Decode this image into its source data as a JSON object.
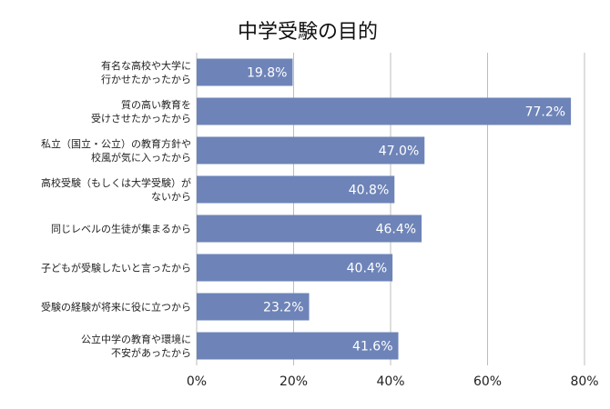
{
  "chart_data": {
    "type": "bar",
    "orientation": "horizontal",
    "title": "中学受験の目的",
    "xlabel": "",
    "ylabel": "",
    "xlim": [
      0,
      80
    ],
    "ticks": [
      0,
      20,
      40,
      60,
      80
    ],
    "tick_labels": [
      "0%",
      "20%",
      "40%",
      "60%",
      "80%"
    ],
    "grid": true,
    "legend": "none",
    "bar_color": "#6e84b8",
    "categories": [
      [
        "有名な高校や大学に",
        "行かせたかったから"
      ],
      [
        "質の高い教育を",
        "受けさせたかったから"
      ],
      [
        "私立（国立・公立）の教育方針や",
        "校風が気に入ったから"
      ],
      [
        "高校受験（もしくは大学受験）が",
        "ないから"
      ],
      [
        "同じレベルの生徒が集まるから"
      ],
      [
        "子どもが受験したいと言ったから"
      ],
      [
        "受験の経験が将来に役に立つから"
      ],
      [
        "公立中学の教育や環境に",
        "不安があったから"
      ]
    ],
    "values": [
      19.8,
      77.2,
      47.0,
      40.8,
      46.4,
      40.4,
      23.2,
      41.6
    ],
    "value_labels": [
      "19.8%",
      "77.2%",
      "47.0%",
      "40.8%",
      "46.4%",
      "40.4%",
      "23.2%",
      "41.6%"
    ]
  }
}
